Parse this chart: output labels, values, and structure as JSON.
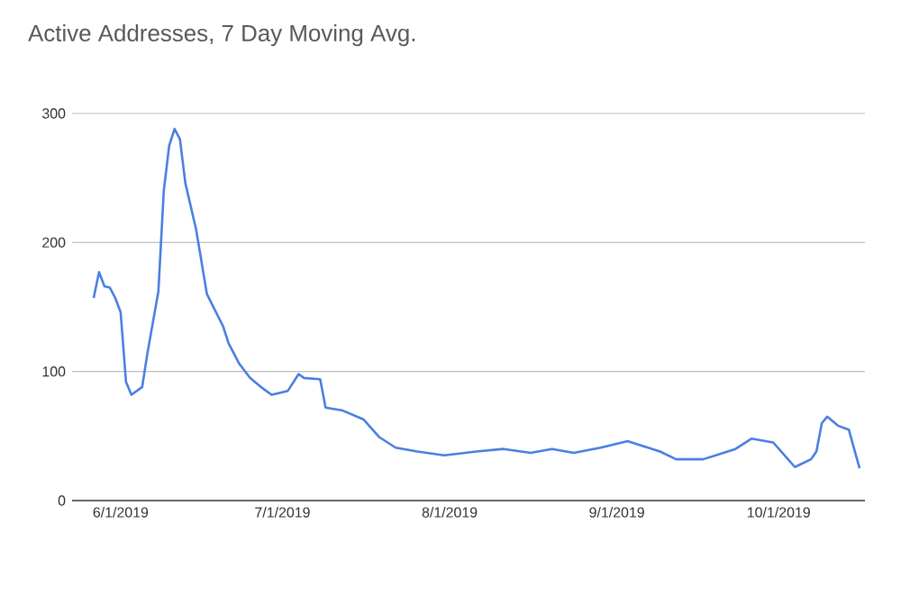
{
  "chart_data": {
    "type": "line",
    "title": "Active Addresses, 7 Day Moving Avg.",
    "x": [
      "2019-05-27",
      "2019-05-28",
      "2019-05-29",
      "2019-05-30",
      "2019-05-31",
      "2019-06-01",
      "2019-06-02",
      "2019-06-03",
      "2019-06-05",
      "2019-06-06",
      "2019-06-08",
      "2019-06-09",
      "2019-06-10",
      "2019-06-11",
      "2019-06-12",
      "2019-06-13",
      "2019-06-15",
      "2019-06-17",
      "2019-06-20",
      "2019-06-21",
      "2019-06-23",
      "2019-06-25",
      "2019-06-27",
      "2019-06-29",
      "2019-07-02",
      "2019-07-04",
      "2019-07-05",
      "2019-07-08",
      "2019-07-09",
      "2019-07-12",
      "2019-07-16",
      "2019-07-19",
      "2019-07-22",
      "2019-07-26",
      "2019-07-31",
      "2019-08-06",
      "2019-08-11",
      "2019-08-16",
      "2019-08-20",
      "2019-08-24",
      "2019-08-29",
      "2019-09-03",
      "2019-09-09",
      "2019-09-12",
      "2019-09-17",
      "2019-09-23",
      "2019-09-26",
      "2019-09-30",
      "2019-10-04",
      "2019-10-07",
      "2019-10-08",
      "2019-10-09",
      "2019-10-10",
      "2019-10-12",
      "2019-10-14",
      "2019-10-16"
    ],
    "series": [
      {
        "color": "#4a7fe0",
        "values": [
          157,
          177,
          166,
          165,
          157,
          146,
          92,
          82,
          88,
          115,
          162,
          240,
          275,
          288,
          280,
          246,
          210,
          160,
          135,
          122,
          106,
          95,
          88,
          82,
          85,
          98,
          95,
          94,
          72,
          70,
          63,
          49,
          41,
          38,
          35,
          38,
          40,
          37,
          40,
          37,
          41,
          46,
          38,
          32,
          32,
          40,
          48,
          45,
          26,
          32,
          38,
          60,
          65,
          58,
          55,
          25
        ]
      }
    ],
    "xlim": [
      "2019-05-23",
      "2019-10-17"
    ],
    "xticks": [
      {
        "value": "2019-06-01",
        "label": "6/1/2019"
      },
      {
        "value": "2019-07-01",
        "label": "7/1/2019"
      },
      {
        "value": "2019-08-01",
        "label": "8/1/2019"
      },
      {
        "value": "2019-09-01",
        "label": "9/1/2019"
      },
      {
        "value": "2019-10-01",
        "label": "10/1/2019"
      }
    ],
    "ylim": [
      0,
      300
    ],
    "yticks": [
      0,
      100,
      200,
      300
    ],
    "grid": "y",
    "marker": "none",
    "line_style": "solid"
  }
}
